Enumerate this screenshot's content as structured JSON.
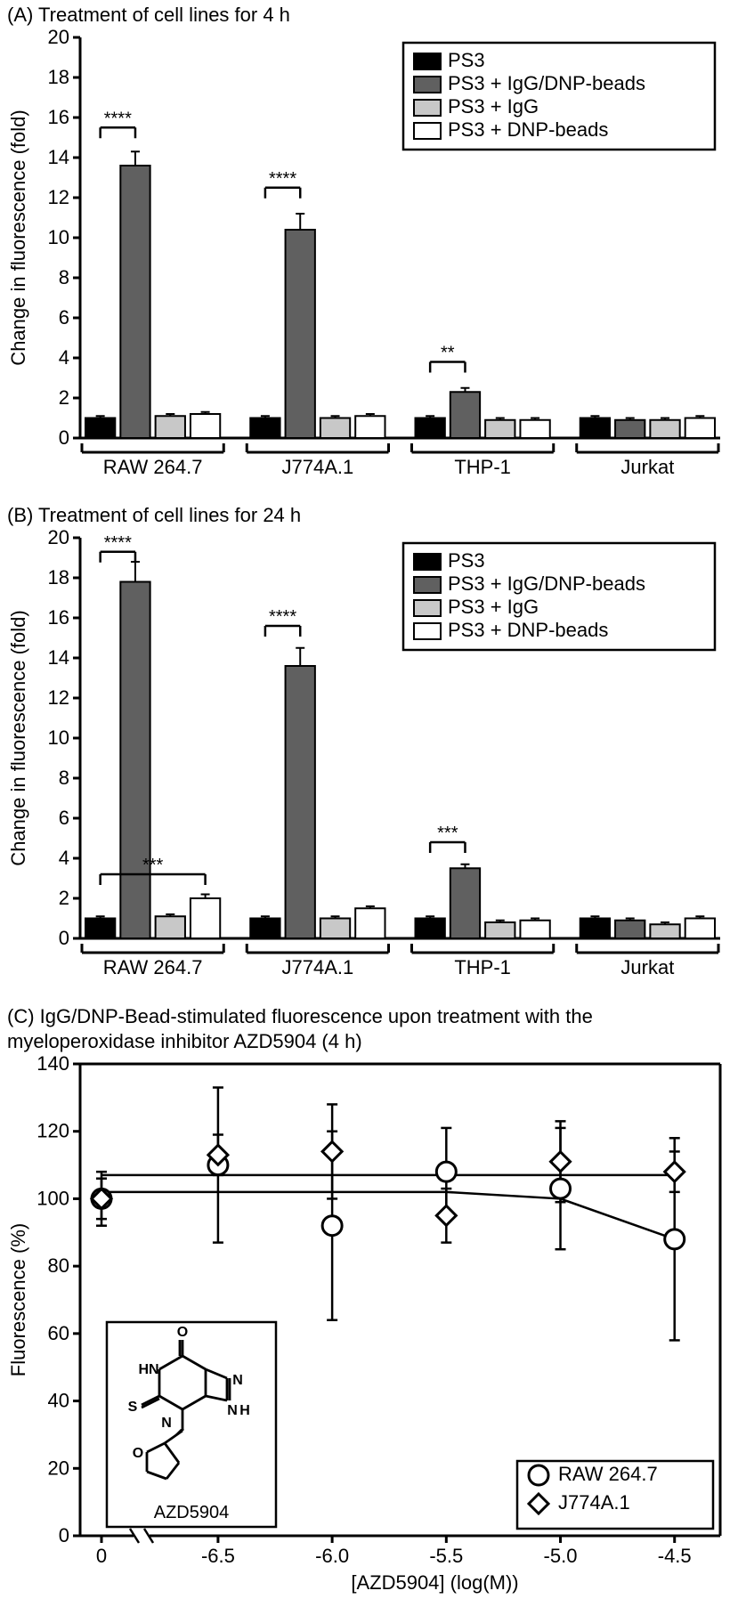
{
  "panelA": {
    "title": "(A) Treatment of cell lines for 4 h",
    "type": "bar",
    "ylabel": "Change in fluorescence (fold)",
    "ylim": [
      0,
      20
    ],
    "ytick_step": 2,
    "groups": [
      "RAW 264.7",
      "J774A.1",
      "THP-1",
      "Jurkat"
    ],
    "series": [
      {
        "label": "PS3",
        "fill": "#000000",
        "stroke": "#000000"
      },
      {
        "label": "PS3 + IgG/DNP-beads",
        "fill": "#606060",
        "stroke": "#000000"
      },
      {
        "label": "PS3 + IgG",
        "fill": "#c8c8c8",
        "stroke": "#000000"
      },
      {
        "label": "PS3 + DNP-beads",
        "fill": "#ffffff",
        "stroke": "#000000"
      }
    ],
    "values": [
      [
        1.0,
        13.6,
        1.1,
        1.2
      ],
      [
        1.0,
        10.4,
        1.0,
        1.1
      ],
      [
        1.0,
        2.3,
        0.9,
        0.9
      ],
      [
        1.0,
        0.9,
        0.9,
        1.0
      ]
    ],
    "errors": [
      [
        0.1,
        0.7,
        0.1,
        0.1
      ],
      [
        0.1,
        0.8,
        0.1,
        0.1
      ],
      [
        0.1,
        0.2,
        0.1,
        0.1
      ],
      [
        0.1,
        0.1,
        0.1,
        0.1
      ]
    ],
    "sig": [
      {
        "group": 0,
        "from": 0,
        "to": 1,
        "label": "****",
        "y": 15.5
      },
      {
        "group": 1,
        "from": 0,
        "to": 1,
        "label": "****",
        "y": 12.5
      },
      {
        "group": 2,
        "from": 0,
        "to": 1,
        "label": "**",
        "y": 3.8
      }
    ],
    "axis_color": "#000000",
    "text_color": "#000000",
    "axis_fontsize": 22,
    "tick_fontsize": 22,
    "legend_fontsize": 22,
    "bar_stroke_width": 2,
    "axis_stroke_width": 3
  },
  "panelB": {
    "title": "(B) Treatment of cell lines for 24 h",
    "type": "bar",
    "ylabel": "Change in fluorescence (fold)",
    "ylim": [
      0,
      20
    ],
    "ytick_step": 2,
    "groups": [
      "RAW 264.7",
      "J774A.1",
      "THP-1",
      "Jurkat"
    ],
    "series": [
      {
        "label": "PS3",
        "fill": "#000000",
        "stroke": "#000000"
      },
      {
        "label": "PS3 + IgG/DNP-beads",
        "fill": "#606060",
        "stroke": "#000000"
      },
      {
        "label": "PS3 + IgG",
        "fill": "#c8c8c8",
        "stroke": "#000000"
      },
      {
        "label": "PS3 + DNP-beads",
        "fill": "#ffffff",
        "stroke": "#000000"
      }
    ],
    "values": [
      [
        1.0,
        17.8,
        1.1,
        2.0
      ],
      [
        1.0,
        13.6,
        1.0,
        1.5
      ],
      [
        1.0,
        3.5,
        0.8,
        0.9
      ],
      [
        1.0,
        0.9,
        0.7,
        1.0
      ]
    ],
    "errors": [
      [
        0.1,
        1.0,
        0.1,
        0.2
      ],
      [
        0.1,
        0.9,
        0.1,
        0.1
      ],
      [
        0.1,
        0.2,
        0.1,
        0.1
      ],
      [
        0.1,
        0.1,
        0.1,
        0.1
      ]
    ],
    "sig": [
      {
        "group": 0,
        "from": 0,
        "to": 1,
        "label": "****",
        "y": 19.3
      },
      {
        "group": 0,
        "from": 0,
        "to": 3,
        "label": "***",
        "y": 3.2,
        "second": true
      },
      {
        "group": 1,
        "from": 0,
        "to": 1,
        "label": "****",
        "y": 15.6
      },
      {
        "group": 2,
        "from": 0,
        "to": 1,
        "label": "***",
        "y": 4.8
      }
    ],
    "axis_color": "#000000",
    "text_color": "#000000",
    "axis_fontsize": 22,
    "tick_fontsize": 22,
    "legend_fontsize": 22,
    "bar_stroke_width": 2,
    "axis_stroke_width": 3
  },
  "panelC": {
    "title": "(C) IgG/DNP-Bead-stimulated fluorescence upon treatment with the myeloperoxidase inhibitor AZD5904 (4 h)",
    "type": "scatter-line",
    "ylabel": "Fluorescence (%)",
    "xlabel": "[AZD5904] (log(M))",
    "ylim": [
      0,
      140
    ],
    "ytick_step": 20,
    "xlim_main": [
      -6.8,
      -4.3
    ],
    "xticks": [
      "-6.5",
      "-6.0",
      "-5.5",
      "-5.0",
      "-4.5"
    ],
    "xvals": [
      -6.5,
      -6.0,
      -5.5,
      -5.0,
      -4.5
    ],
    "zero_x": 0,
    "series": [
      {
        "label": "RAW 264.7",
        "marker": "circle",
        "fill": "#ffffff",
        "stroke": "#000000",
        "points": [
          [
            0,
            100
          ],
          [
            -6.5,
            110
          ],
          [
            -6.0,
            92
          ],
          [
            -5.5,
            108
          ],
          [
            -5.0,
            103
          ],
          [
            -4.5,
            88
          ]
        ],
        "errors": [
          8,
          23,
          28,
          13,
          18,
          30
        ],
        "line": [
          [
            0,
            102
          ],
          [
            -6.5,
            102
          ],
          [
            -6.0,
            102
          ],
          [
            -5.5,
            102
          ],
          [
            -5.0,
            100
          ],
          [
            -4.5,
            88
          ]
        ]
      },
      {
        "label": "J774A.1",
        "marker": "diamond",
        "fill": "#ffffff",
        "stroke": "#000000",
        "points": [
          [
            0,
            100
          ],
          [
            -6.5,
            113
          ],
          [
            -6.0,
            114
          ],
          [
            -5.5,
            95
          ],
          [
            -5.0,
            111
          ],
          [
            -4.5,
            108
          ]
        ],
        "errors": [
          6,
          6,
          14,
          8,
          12,
          6
        ],
        "line": [
          [
            0,
            107
          ],
          [
            -6.5,
            107
          ],
          [
            -6.0,
            107
          ],
          [
            -5.5,
            107
          ],
          [
            -5.0,
            107
          ],
          [
            -4.5,
            107
          ]
        ]
      }
    ],
    "inset_label": "AZD5904",
    "axis_color": "#000000",
    "text_color": "#000000",
    "axis_fontsize": 22,
    "tick_fontsize": 22,
    "legend_fontsize": 22,
    "axis_stroke_width": 3,
    "marker_size": 11,
    "marker_stroke_width": 3
  }
}
